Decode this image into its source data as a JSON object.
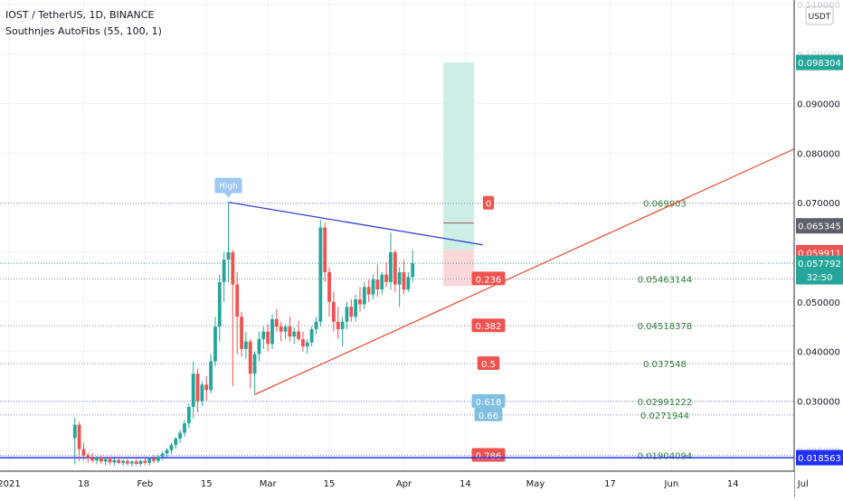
{
  "chart_data": {
    "type": "candlestick",
    "symbol_title": "IOST / TetherUS, 1D, BINANCE",
    "indicator_title": "Southnjes AutoFibs (55, 100, 1)",
    "price_axis": {
      "currency_label": "USDT",
      "ticks": [
        "0.090000",
        "0.080000",
        "0.070000",
        "0.050000",
        "0.040000",
        "0.030000"
      ],
      "tick_values": [
        0.09,
        0.08,
        0.07,
        0.05,
        0.04,
        0.03
      ],
      "partial_labels": [
        "0.110000",
        "0.100000",
        "0.020000"
      ],
      "ylim": [
        0.0168,
        0.1145
      ],
      "price_tags": [
        {
          "label": "0.098304",
          "value": 0.098304,
          "color": "#26a69a"
        },
        {
          "label": "0.065345",
          "value": 0.065345,
          "color": "#5d606b"
        },
        {
          "label": "0.059911",
          "value": 0.059911,
          "color": "#ef5350"
        },
        {
          "label": "0.057792",
          "value": 0.057792,
          "color": "#26a69a"
        },
        {
          "label": "0.018563",
          "value": 0.018563,
          "color": "#1f2fff"
        }
      ],
      "countdown": "32:50"
    },
    "time_axis": {
      "labels": [
        "2021",
        "18",
        "Feb",
        "15",
        "Mar",
        "15",
        "Apr",
        "14",
        "May",
        "17",
        "Jun",
        "14",
        "Jul"
      ],
      "label_days": [
        0,
        17,
        31,
        45,
        59,
        73,
        90,
        104,
        120,
        137,
        151,
        165,
        181
      ],
      "day0": "2021-01-01"
    },
    "fib_levels": [
      {
        "ratio": "0",
        "value": 0.069903,
        "label": "0.069903",
        "value_color": "#2e7d32",
        "tag_color": "#ef5350"
      },
      {
        "ratio": "0.236",
        "value": 0.05463144,
        "label": "0.05463144",
        "value_color": "#2e7d32",
        "tag_color": "#ef5350"
      },
      {
        "ratio": "0.382",
        "value": 0.04518378,
        "label": "0.04518378",
        "value_color": "#2e7d32",
        "tag_color": "#ef5350"
      },
      {
        "ratio": "0.5",
        "value": 0.037548,
        "label": "0.037548",
        "value_color": "#2e7d32",
        "tag_color": "#ef5350"
      },
      {
        "ratio": "0.618",
        "value": 0.02991222,
        "label": "0.02991222",
        "value_color": "#2e7d32",
        "tag_color": "#7fbfdf"
      },
      {
        "ratio": "0.66",
        "value": 0.0271944,
        "label": "0.0271944",
        "value_color": "#2e7d32",
        "tag_color": "#7fbfdf"
      },
      {
        "ratio": "0.786",
        "value": 0.01904094,
        "label": "0.01904094",
        "value_color": "#2e7d32",
        "tag_color": "#ef5350"
      }
    ],
    "high_label": "High",
    "high_point": {
      "day": 50,
      "value": 0.0701
    },
    "lines": [
      {
        "name": "resistance",
        "color": "#2f3fd9",
        "from": {
          "day": 50,
          "value": 0.0701
        },
        "to": {
          "day": 108,
          "value": 0.0615
        }
      },
      {
        "name": "support",
        "color": "#e8553a",
        "from": {
          "day": 56,
          "value": 0.0313
        },
        "to": {
          "day": 194,
          "value": 0.0869
        }
      }
    ],
    "position": {
      "from_day": 99,
      "to_day": 106,
      "entry": 0.0605,
      "stop": 0.0532,
      "target": 0.0983,
      "mid_line": 0.0659
    },
    "colors": {
      "up": "#26a69a",
      "down": "#ef5350"
    },
    "candles": [
      {
        "day": 15,
        "o": 0.0225,
        "h": 0.0266,
        "l": 0.0172,
        "c": 0.0252
      },
      {
        "day": 16,
        "o": 0.0252,
        "h": 0.0258,
        "l": 0.0178,
        "c": 0.0203
      },
      {
        "day": 17,
        "o": 0.0203,
        "h": 0.0215,
        "l": 0.018,
        "c": 0.019
      },
      {
        "day": 18,
        "o": 0.019,
        "h": 0.0196,
        "l": 0.0175,
        "c": 0.0185
      },
      {
        "day": 19,
        "o": 0.0185,
        "h": 0.0195,
        "l": 0.0176,
        "c": 0.018
      },
      {
        "day": 20,
        "o": 0.018,
        "h": 0.0189,
        "l": 0.0172,
        "c": 0.0186
      },
      {
        "day": 21,
        "o": 0.0186,
        "h": 0.019,
        "l": 0.0173,
        "c": 0.0178
      },
      {
        "day": 22,
        "o": 0.0178,
        "h": 0.0186,
        "l": 0.017,
        "c": 0.0183
      },
      {
        "day": 23,
        "o": 0.0183,
        "h": 0.0188,
        "l": 0.0171,
        "c": 0.0176
      },
      {
        "day": 24,
        "o": 0.0176,
        "h": 0.0184,
        "l": 0.017,
        "c": 0.0181
      },
      {
        "day": 25,
        "o": 0.0181,
        "h": 0.0186,
        "l": 0.0172,
        "c": 0.0175
      },
      {
        "day": 26,
        "o": 0.0175,
        "h": 0.0182,
        "l": 0.0169,
        "c": 0.0179
      },
      {
        "day": 27,
        "o": 0.0179,
        "h": 0.0183,
        "l": 0.017,
        "c": 0.0174
      },
      {
        "day": 28,
        "o": 0.0174,
        "h": 0.018,
        "l": 0.0168,
        "c": 0.0178
      },
      {
        "day": 29,
        "o": 0.0178,
        "h": 0.0183,
        "l": 0.017,
        "c": 0.0173
      },
      {
        "day": 30,
        "o": 0.0173,
        "h": 0.0181,
        "l": 0.0168,
        "c": 0.0179
      },
      {
        "day": 31,
        "o": 0.0179,
        "h": 0.0185,
        "l": 0.0171,
        "c": 0.0175
      },
      {
        "day": 32,
        "o": 0.0175,
        "h": 0.0187,
        "l": 0.017,
        "c": 0.0184
      },
      {
        "day": 33,
        "o": 0.0184,
        "h": 0.019,
        "l": 0.0174,
        "c": 0.0179
      },
      {
        "day": 34,
        "o": 0.0179,
        "h": 0.0192,
        "l": 0.0175,
        "c": 0.0188
      },
      {
        "day": 35,
        "o": 0.0188,
        "h": 0.0198,
        "l": 0.018,
        "c": 0.0194
      },
      {
        "day": 36,
        "o": 0.0194,
        "h": 0.0205,
        "l": 0.0187,
        "c": 0.0201
      },
      {
        "day": 37,
        "o": 0.0201,
        "h": 0.0215,
        "l": 0.0193,
        "c": 0.0211
      },
      {
        "day": 38,
        "o": 0.0211,
        "h": 0.0228,
        "l": 0.0204,
        "c": 0.0224
      },
      {
        "day": 39,
        "o": 0.0224,
        "h": 0.0242,
        "l": 0.0215,
        "c": 0.0236
      },
      {
        "day": 40,
        "o": 0.0236,
        "h": 0.0262,
        "l": 0.0228,
        "c": 0.0255
      },
      {
        "day": 41,
        "o": 0.0255,
        "h": 0.0295,
        "l": 0.0245,
        "c": 0.0288
      },
      {
        "day": 42,
        "o": 0.0288,
        "h": 0.038,
        "l": 0.0265,
        "c": 0.0355
      },
      {
        "day": 43,
        "o": 0.0355,
        "h": 0.0365,
        "l": 0.0277,
        "c": 0.03
      },
      {
        "day": 44,
        "o": 0.03,
        "h": 0.034,
        "l": 0.029,
        "c": 0.0333
      },
      {
        "day": 45,
        "o": 0.0333,
        "h": 0.035,
        "l": 0.03,
        "c": 0.0322
      },
      {
        "day": 46,
        "o": 0.0322,
        "h": 0.0395,
        "l": 0.0315,
        "c": 0.038
      },
      {
        "day": 47,
        "o": 0.038,
        "h": 0.047,
        "l": 0.037,
        "c": 0.045
      },
      {
        "day": 48,
        "o": 0.045,
        "h": 0.0555,
        "l": 0.042,
        "c": 0.054
      },
      {
        "day": 49,
        "o": 0.054,
        "h": 0.06,
        "l": 0.05,
        "c": 0.0585
      },
      {
        "day": 50,
        "o": 0.0585,
        "h": 0.0701,
        "l": 0.054,
        "c": 0.06
      },
      {
        "day": 51,
        "o": 0.06,
        "h": 0.0605,
        "l": 0.033,
        "c": 0.0535
      },
      {
        "day": 52,
        "o": 0.0535,
        "h": 0.056,
        "l": 0.0395,
        "c": 0.047
      },
      {
        "day": 53,
        "o": 0.047,
        "h": 0.048,
        "l": 0.039,
        "c": 0.0405
      },
      {
        "day": 54,
        "o": 0.0405,
        "h": 0.044,
        "l": 0.0385,
        "c": 0.042
      },
      {
        "day": 55,
        "o": 0.042,
        "h": 0.0425,
        "l": 0.0325,
        "c": 0.0355
      },
      {
        "day": 56,
        "o": 0.0355,
        "h": 0.04,
        "l": 0.0313,
        "c": 0.0395
      },
      {
        "day": 57,
        "o": 0.0395,
        "h": 0.044,
        "l": 0.038,
        "c": 0.0425
      },
      {
        "day": 58,
        "o": 0.0425,
        "h": 0.045,
        "l": 0.0405,
        "c": 0.044
      },
      {
        "day": 59,
        "o": 0.044,
        "h": 0.0455,
        "l": 0.04,
        "c": 0.0415
      },
      {
        "day": 60,
        "o": 0.0415,
        "h": 0.0475,
        "l": 0.0405,
        "c": 0.0465
      },
      {
        "day": 61,
        "o": 0.0465,
        "h": 0.0485,
        "l": 0.044,
        "c": 0.045
      },
      {
        "day": 62,
        "o": 0.045,
        "h": 0.046,
        "l": 0.042,
        "c": 0.044
      },
      {
        "day": 63,
        "o": 0.044,
        "h": 0.0455,
        "l": 0.0425,
        "c": 0.045
      },
      {
        "day": 64,
        "o": 0.045,
        "h": 0.047,
        "l": 0.042,
        "c": 0.043
      },
      {
        "day": 65,
        "o": 0.043,
        "h": 0.0448,
        "l": 0.0415,
        "c": 0.044
      },
      {
        "day": 66,
        "o": 0.044,
        "h": 0.0462,
        "l": 0.042,
        "c": 0.0425
      },
      {
        "day": 67,
        "o": 0.0425,
        "h": 0.044,
        "l": 0.04,
        "c": 0.041
      },
      {
        "day": 68,
        "o": 0.041,
        "h": 0.0425,
        "l": 0.0395,
        "c": 0.0418
      },
      {
        "day": 69,
        "o": 0.0418,
        "h": 0.045,
        "l": 0.041,
        "c": 0.0445
      },
      {
        "day": 70,
        "o": 0.0445,
        "h": 0.047,
        "l": 0.0435,
        "c": 0.046
      },
      {
        "day": 71,
        "o": 0.046,
        "h": 0.0665,
        "l": 0.045,
        "c": 0.065
      },
      {
        "day": 72,
        "o": 0.065,
        "h": 0.066,
        "l": 0.054,
        "c": 0.056
      },
      {
        "day": 73,
        "o": 0.056,
        "h": 0.057,
        "l": 0.047,
        "c": 0.05
      },
      {
        "day": 74,
        "o": 0.05,
        "h": 0.052,
        "l": 0.044,
        "c": 0.046
      },
      {
        "day": 75,
        "o": 0.046,
        "h": 0.049,
        "l": 0.0425,
        "c": 0.0445
      },
      {
        "day": 76,
        "o": 0.0445,
        "h": 0.047,
        "l": 0.041,
        "c": 0.046
      },
      {
        "day": 77,
        "o": 0.046,
        "h": 0.05,
        "l": 0.0445,
        "c": 0.049
      },
      {
        "day": 78,
        "o": 0.049,
        "h": 0.0505,
        "l": 0.046,
        "c": 0.047
      },
      {
        "day": 79,
        "o": 0.047,
        "h": 0.0515,
        "l": 0.046,
        "c": 0.0505
      },
      {
        "day": 80,
        "o": 0.0505,
        "h": 0.053,
        "l": 0.048,
        "c": 0.0495
      },
      {
        "day": 81,
        "o": 0.0495,
        "h": 0.054,
        "l": 0.0485,
        "c": 0.053
      },
      {
        "day": 82,
        "o": 0.053,
        "h": 0.0545,
        "l": 0.05,
        "c": 0.0515
      },
      {
        "day": 83,
        "o": 0.0515,
        "h": 0.0555,
        "l": 0.0505,
        "c": 0.0545
      },
      {
        "day": 84,
        "o": 0.0545,
        "h": 0.0575,
        "l": 0.051,
        "c": 0.0525
      },
      {
        "day": 85,
        "o": 0.0525,
        "h": 0.056,
        "l": 0.0515,
        "c": 0.0555
      },
      {
        "day": 86,
        "o": 0.0555,
        "h": 0.058,
        "l": 0.053,
        "c": 0.054
      },
      {
        "day": 87,
        "o": 0.054,
        "h": 0.064,
        "l": 0.0525,
        "c": 0.06
      },
      {
        "day": 88,
        "o": 0.06,
        "h": 0.0605,
        "l": 0.052,
        "c": 0.0535
      },
      {
        "day": 89,
        "o": 0.0535,
        "h": 0.057,
        "l": 0.049,
        "c": 0.056
      },
      {
        "day": 90,
        "o": 0.056,
        "h": 0.0585,
        "l": 0.0515,
        "c": 0.0525
      },
      {
        "day": 91,
        "o": 0.0525,
        "h": 0.056,
        "l": 0.052,
        "c": 0.055
      },
      {
        "day": 92,
        "o": 0.055,
        "h": 0.0605,
        "l": 0.054,
        "c": 0.0578
      }
    ]
  }
}
